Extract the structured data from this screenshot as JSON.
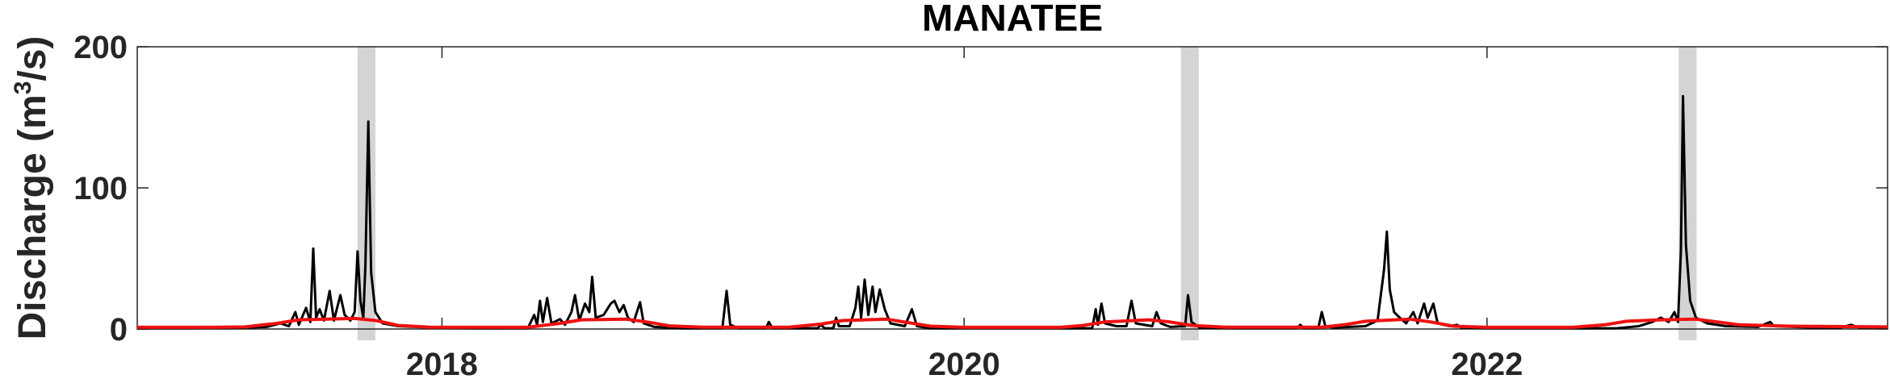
{
  "chart_data": {
    "type": "line",
    "title": "MANATEE",
    "ylabel": "Discharge (m³/s)",
    "ylabel_parts": {
      "base": "Discharge (m",
      "sup": "3",
      "tail": "/s)"
    },
    "xlabel": "",
    "xlim": [
      "2016-11-01",
      "2023-07-15"
    ],
    "ylim": [
      0,
      200
    ],
    "yticks": [
      0,
      100,
      200
    ],
    "xticks": [
      {
        "date": "2018-01-01",
        "label": "2018"
      },
      {
        "date": "2020-01-01",
        "label": "2020"
      },
      {
        "date": "2022-01-01",
        "label": "2022"
      }
    ],
    "grid": false,
    "legend": "none",
    "shaded_periods": [
      {
        "start": "2017-09-05",
        "end": "2017-09-30"
      },
      {
        "start": "2020-10-30",
        "end": "2020-11-24"
      },
      {
        "start": "2022-09-26",
        "end": "2022-10-21"
      }
    ],
    "series": [
      {
        "color": "#000000",
        "points": [
          [
            "2016-11-01",
            0.5
          ],
          [
            "2017-01-15",
            0.5
          ],
          [
            "2017-03-20",
            0.8
          ],
          [
            "2017-05-01",
            1.5
          ],
          [
            "2017-05-20",
            4
          ],
          [
            "2017-06-01",
            2
          ],
          [
            "2017-06-10",
            12
          ],
          [
            "2017-06-15",
            3
          ],
          [
            "2017-06-25",
            15
          ],
          [
            "2017-07-01",
            5
          ],
          [
            "2017-07-05",
            57
          ],
          [
            "2017-07-09",
            8
          ],
          [
            "2017-07-14",
            14
          ],
          [
            "2017-07-20",
            6
          ],
          [
            "2017-07-28",
            27
          ],
          [
            "2017-08-03",
            6
          ],
          [
            "2017-08-12",
            24
          ],
          [
            "2017-08-18",
            10
          ],
          [
            "2017-08-26",
            6
          ],
          [
            "2017-09-01",
            12
          ],
          [
            "2017-09-05",
            55
          ],
          [
            "2017-09-09",
            20
          ],
          [
            "2017-09-13",
            8
          ],
          [
            "2017-09-16",
            45
          ],
          [
            "2017-09-20",
            147
          ],
          [
            "2017-09-24",
            40
          ],
          [
            "2017-09-30",
            12
          ],
          [
            "2017-10-10",
            4
          ],
          [
            "2017-11-01",
            2
          ],
          [
            "2017-12-15",
            1
          ],
          [
            "2018-02-15",
            0.5
          ],
          [
            "2018-05-01",
            0.5
          ],
          [
            "2018-05-10",
            10
          ],
          [
            "2018-05-14",
            3
          ],
          [
            "2018-05-18",
            20
          ],
          [
            "2018-05-22",
            5
          ],
          [
            "2018-05-28",
            22
          ],
          [
            "2018-06-03",
            4
          ],
          [
            "2018-06-15",
            7
          ],
          [
            "2018-06-22",
            3
          ],
          [
            "2018-07-01",
            12
          ],
          [
            "2018-07-06",
            24
          ],
          [
            "2018-07-12",
            6
          ],
          [
            "2018-07-20",
            18
          ],
          [
            "2018-07-26",
            12
          ],
          [
            "2018-07-30",
            37
          ],
          [
            "2018-08-04",
            8
          ],
          [
            "2018-08-15",
            10
          ],
          [
            "2018-08-25",
            18
          ],
          [
            "2018-08-30",
            20
          ],
          [
            "2018-09-06",
            12
          ],
          [
            "2018-09-12",
            17
          ],
          [
            "2018-09-18",
            8
          ],
          [
            "2018-09-26",
            5
          ],
          [
            "2018-10-05",
            19
          ],
          [
            "2018-10-10",
            4
          ],
          [
            "2018-10-25",
            1.5
          ],
          [
            "2018-12-01",
            0.5
          ],
          [
            "2019-01-28",
            0.5
          ],
          [
            "2019-02-03",
            27
          ],
          [
            "2019-02-08",
            3
          ],
          [
            "2019-02-20",
            0.5
          ],
          [
            "2019-03-30",
            0.5
          ],
          [
            "2019-04-03",
            5
          ],
          [
            "2019-04-08",
            0.5
          ],
          [
            "2019-06-10",
            0.5
          ],
          [
            "2019-06-15",
            3
          ],
          [
            "2019-06-20",
            0.5
          ],
          [
            "2019-07-02",
            0.5
          ],
          [
            "2019-07-06",
            8
          ],
          [
            "2019-07-10",
            2
          ],
          [
            "2019-07-25",
            2
          ],
          [
            "2019-08-02",
            15
          ],
          [
            "2019-08-06",
            30
          ],
          [
            "2019-08-10",
            8
          ],
          [
            "2019-08-15",
            35
          ],
          [
            "2019-08-20",
            10
          ],
          [
            "2019-08-26",
            30
          ],
          [
            "2019-08-30",
            12
          ],
          [
            "2019-09-05",
            28
          ],
          [
            "2019-09-12",
            14
          ],
          [
            "2019-09-20",
            4
          ],
          [
            "2019-10-10",
            2
          ],
          [
            "2019-10-20",
            14
          ],
          [
            "2019-10-27",
            2
          ],
          [
            "2019-11-15",
            0.5
          ],
          [
            "2020-06-28",
            0.5
          ],
          [
            "2020-07-03",
            14
          ],
          [
            "2020-07-06",
            3
          ],
          [
            "2020-07-11",
            18
          ],
          [
            "2020-07-16",
            4
          ],
          [
            "2020-08-01",
            2
          ],
          [
            "2020-08-15",
            2
          ],
          [
            "2020-08-22",
            20
          ],
          [
            "2020-08-28",
            4
          ],
          [
            "2020-09-20",
            2
          ],
          [
            "2020-09-26",
            12
          ],
          [
            "2020-10-02",
            4
          ],
          [
            "2020-10-15",
            1.5
          ],
          [
            "2020-11-05",
            2
          ],
          [
            "2020-11-09",
            24
          ],
          [
            "2020-11-14",
            5
          ],
          [
            "2020-11-25",
            1
          ],
          [
            "2021-01-15",
            0.5
          ],
          [
            "2021-04-10",
            0.5
          ],
          [
            "2021-04-15",
            3
          ],
          [
            "2021-04-20",
            0.5
          ],
          [
            "2021-05-10",
            0.5
          ],
          [
            "2021-05-15",
            12
          ],
          [
            "2021-05-20",
            2
          ],
          [
            "2021-06-01",
            1
          ],
          [
            "2021-07-15",
            2
          ],
          [
            "2021-08-01",
            6
          ],
          [
            "2021-08-10",
            42
          ],
          [
            "2021-08-14",
            69
          ],
          [
            "2021-08-18",
            28
          ],
          [
            "2021-08-24",
            12
          ],
          [
            "2021-09-01",
            8
          ],
          [
            "2021-09-10",
            4
          ],
          [
            "2021-09-20",
            12
          ],
          [
            "2021-09-26",
            4
          ],
          [
            "2021-10-05",
            18
          ],
          [
            "2021-10-10",
            8
          ],
          [
            "2021-10-18",
            18
          ],
          [
            "2021-10-24",
            4
          ],
          [
            "2021-11-10",
            2
          ],
          [
            "2021-11-20",
            3
          ],
          [
            "2021-11-26",
            1
          ],
          [
            "2022-01-01",
            0.5
          ],
          [
            "2022-07-01",
            0.5
          ],
          [
            "2022-08-01",
            2
          ],
          [
            "2022-08-20",
            5
          ],
          [
            "2022-09-01",
            8
          ],
          [
            "2022-09-12",
            5
          ],
          [
            "2022-09-20",
            12
          ],
          [
            "2022-09-25",
            5
          ],
          [
            "2022-09-29",
            55
          ],
          [
            "2022-10-02",
            165
          ],
          [
            "2022-10-06",
            60
          ],
          [
            "2022-10-12",
            20
          ],
          [
            "2022-10-20",
            8
          ],
          [
            "2022-11-05",
            4
          ],
          [
            "2022-12-01",
            2
          ],
          [
            "2023-01-15",
            1.5
          ],
          [
            "2023-02-01",
            5
          ],
          [
            "2023-02-06",
            2
          ],
          [
            "2023-04-01",
            1
          ],
          [
            "2023-05-10",
            1
          ],
          [
            "2023-05-25",
            3
          ],
          [
            "2023-06-05",
            1
          ],
          [
            "2023-07-15",
            1
          ]
        ]
      },
      {
        "color": "#ee1111",
        "points": [
          [
            "2016-11-01",
            1.2
          ],
          [
            "2017-02-15",
            1.2
          ],
          [
            "2017-04-01",
            1.5
          ],
          [
            "2017-05-15",
            4
          ],
          [
            "2017-06-15",
            6.5
          ],
          [
            "2017-09-01",
            7.5
          ],
          [
            "2017-10-01",
            6
          ],
          [
            "2017-11-01",
            2.5
          ],
          [
            "2017-12-15",
            1.3
          ],
          [
            "2018-05-01",
            1.2
          ],
          [
            "2018-06-15",
            4
          ],
          [
            "2018-07-15",
            6.5
          ],
          [
            "2018-09-15",
            7
          ],
          [
            "2018-10-15",
            5
          ],
          [
            "2018-11-15",
            2.2
          ],
          [
            "2019-01-01",
            1.3
          ],
          [
            "2019-05-01",
            1.3
          ],
          [
            "2019-06-15",
            3.5
          ],
          [
            "2019-07-15",
            6
          ],
          [
            "2019-09-15",
            7
          ],
          [
            "2019-10-15",
            4.5
          ],
          [
            "2019-11-15",
            2
          ],
          [
            "2020-01-01",
            1.2
          ],
          [
            "2020-05-15",
            1.2
          ],
          [
            "2020-06-15",
            2.5
          ],
          [
            "2020-07-15",
            5
          ],
          [
            "2020-09-15",
            6.5
          ],
          [
            "2020-10-15",
            5
          ],
          [
            "2020-11-15",
            2.5
          ],
          [
            "2021-01-01",
            1.3
          ],
          [
            "2021-05-15",
            1.3
          ],
          [
            "2021-06-15",
            3
          ],
          [
            "2021-07-15",
            5.5
          ],
          [
            "2021-09-15",
            7
          ],
          [
            "2021-10-15",
            5
          ],
          [
            "2021-11-15",
            2
          ],
          [
            "2022-01-01",
            1.2
          ],
          [
            "2022-05-01",
            1.2
          ],
          [
            "2022-06-15",
            3
          ],
          [
            "2022-07-15",
            5.5
          ],
          [
            "2022-09-01",
            6.5
          ],
          [
            "2022-10-20",
            7
          ],
          [
            "2022-11-20",
            5
          ],
          [
            "2022-12-20",
            3
          ],
          [
            "2023-03-01",
            2
          ],
          [
            "2023-07-15",
            1.5
          ]
        ]
      }
    ]
  }
}
